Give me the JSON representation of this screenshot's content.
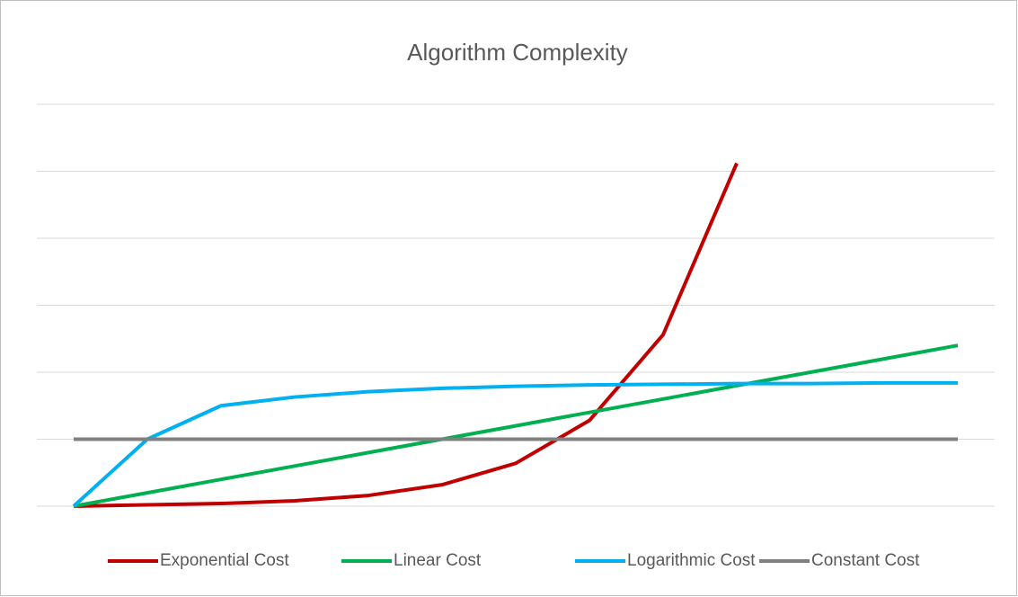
{
  "chart_data": {
    "type": "line",
    "title": "Algorithm Complexity",
    "categories": [
      null,
      null,
      null,
      null,
      null,
      null,
      null,
      null,
      null,
      null,
      null,
      null,
      null
    ],
    "series": [
      {
        "name": "Exponential Cost",
        "color": "#c00000",
        "values": [
          0,
          0.02,
          0.04,
          0.08,
          0.16,
          0.32,
          0.64,
          1.28,
          2.56,
          5.12,
          null,
          null,
          null
        ]
      },
      {
        "name": "Linear Cost",
        "color": "#00b050",
        "values": [
          0,
          0.2,
          0.4,
          0.6,
          0.8,
          1.0,
          1.2,
          1.4,
          1.6,
          1.8,
          2.0,
          2.2,
          2.4
        ]
      },
      {
        "name": "Logarithmic Cost",
        "color": "#00b0f0",
        "values": [
          0,
          1.0,
          1.5,
          1.63,
          1.71,
          1.76,
          1.79,
          1.81,
          1.82,
          1.83,
          1.83,
          1.84,
          1.84
        ]
      },
      {
        "name": "Constant Cost",
        "color": "#808080",
        "values": [
          1,
          1,
          1,
          1,
          1,
          1,
          1,
          1,
          1,
          1,
          1,
          1,
          1
        ]
      }
    ],
    "ylim": [
      0,
      6
    ],
    "yticks": [
      0,
      1,
      2,
      3,
      4,
      5,
      6
    ],
    "grid": true,
    "legend": "bottom"
  }
}
